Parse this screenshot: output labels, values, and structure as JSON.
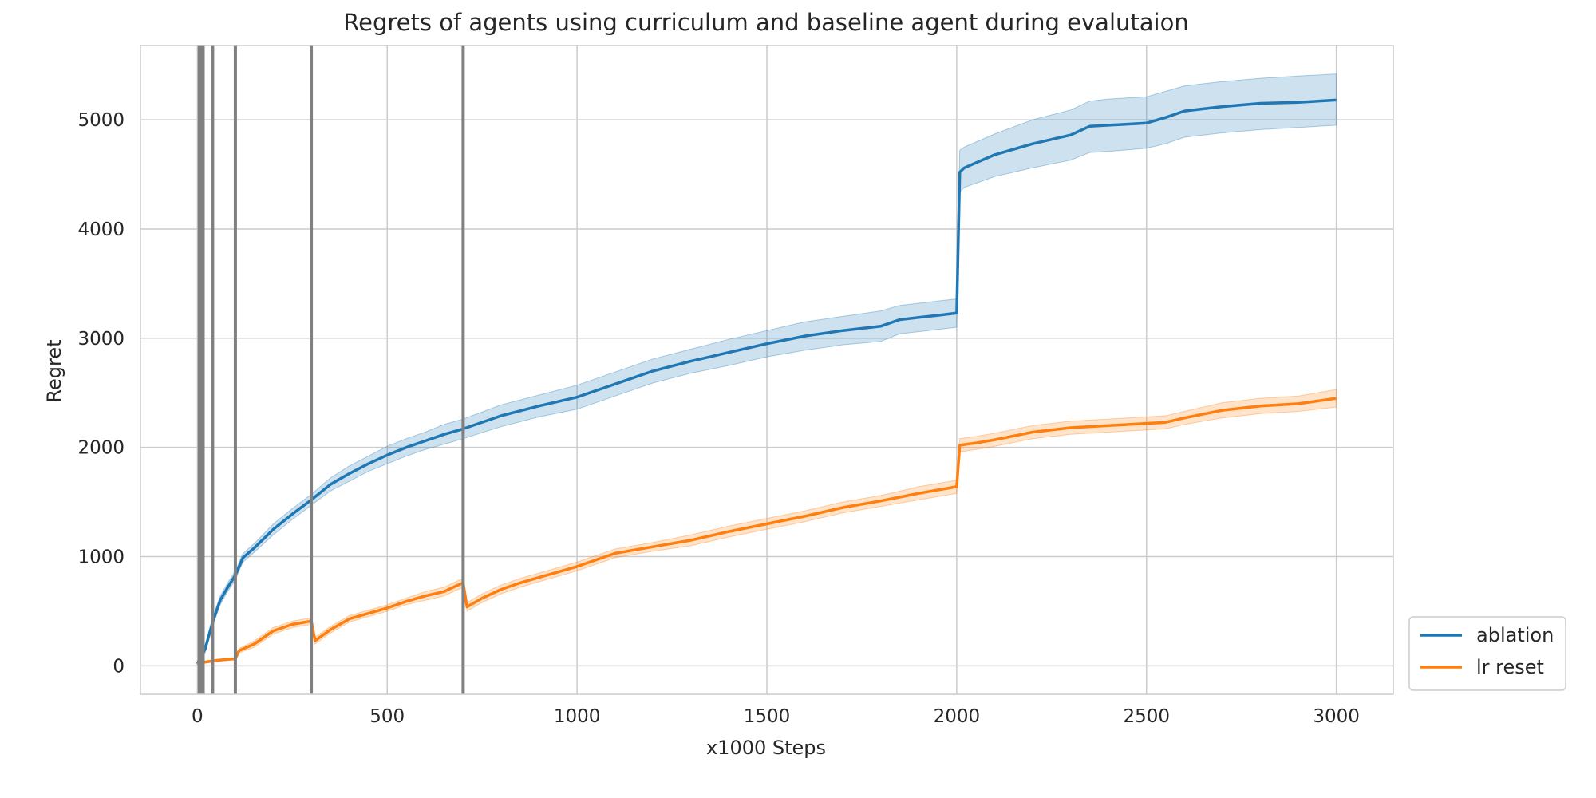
{
  "chart_data": {
    "type": "line",
    "title": "Regrets of agents using curriculum and baseline agent during evalutaion",
    "xlabel": "x1000 Steps",
    "ylabel": "Regret",
    "xlim": [
      -150,
      3150
    ],
    "ylim": [
      -260,
      5680
    ],
    "xticks": [
      0,
      500,
      1000,
      1500,
      2000,
      2500,
      3000
    ],
    "yticks": [
      0,
      1000,
      2000,
      3000,
      4000,
      5000
    ],
    "grid": true,
    "legend_position": "outside-lower-right",
    "vertical_markers": [
      5,
      10,
      15,
      40,
      100,
      300,
      700
    ],
    "series": [
      {
        "name": "ablation",
        "color": "#1f77b4",
        "band_color": "#1f77b4",
        "x": [
          0,
          20,
          40,
          60,
          80,
          100,
          120,
          150,
          200,
          250,
          300,
          350,
          400,
          450,
          500,
          550,
          600,
          650,
          700,
          800,
          900,
          1000,
          1100,
          1200,
          1300,
          1400,
          1500,
          1600,
          1700,
          1800,
          1850,
          1900,
          1950,
          2000,
          2008,
          2020,
          2100,
          2200,
          2300,
          2350,
          2400,
          2500,
          2550,
          2600,
          2700,
          2800,
          2900,
          3000
        ],
        "y": [
          20,
          150,
          400,
          600,
          720,
          830,
          990,
          1080,
          1250,
          1390,
          1520,
          1660,
          1760,
          1850,
          1930,
          2000,
          2060,
          2120,
          2170,
          2290,
          2380,
          2460,
          2580,
          2700,
          2790,
          2870,
          2950,
          3020,
          3070,
          3110,
          3170,
          3190,
          3210,
          3230,
          4520,
          4560,
          4680,
          4780,
          4860,
          4940,
          4950,
          4970,
          5020,
          5080,
          5120,
          5150,
          5160,
          5180
        ],
        "lower": [
          10,
          120,
          360,
          560,
          680,
          790,
          950,
          1040,
          1200,
          1340,
          1470,
          1600,
          1690,
          1780,
          1850,
          1920,
          1980,
          2030,
          2080,
          2190,
          2280,
          2350,
          2470,
          2590,
          2680,
          2750,
          2830,
          2890,
          2940,
          2970,
          3040,
          3060,
          3080,
          3100,
          4340,
          4380,
          4480,
          4560,
          4630,
          4700,
          4710,
          4740,
          4780,
          4840,
          4880,
          4910,
          4930,
          4950
        ],
        "upper": [
          30,
          180,
          440,
          640,
          760,
          870,
          1030,
          1120,
          1300,
          1440,
          1570,
          1720,
          1830,
          1920,
          2010,
          2080,
          2140,
          2210,
          2260,
          2390,
          2480,
          2570,
          2690,
          2810,
          2900,
          2990,
          3070,
          3150,
          3200,
          3250,
          3300,
          3320,
          3340,
          3360,
          4720,
          4750,
          4870,
          5000,
          5090,
          5170,
          5190,
          5210,
          5260,
          5310,
          5350,
          5380,
          5400,
          5420
        ]
      },
      {
        "name": "lr reset",
        "color": "#ff7f0e",
        "band_color": "#ff7f0e",
        "x": [
          0,
          20,
          50,
          80,
          100,
          110,
          150,
          200,
          250,
          300,
          310,
          350,
          400,
          450,
          500,
          550,
          600,
          650,
          680,
          700,
          710,
          750,
          800,
          850,
          900,
          1000,
          1100,
          1200,
          1300,
          1400,
          1500,
          1600,
          1700,
          1800,
          1900,
          2000,
          2008,
          2050,
          2100,
          2200,
          2300,
          2400,
          2500,
          2550,
          2600,
          2700,
          2800,
          2900,
          3000
        ],
        "y": [
          20,
          35,
          50,
          60,
          65,
          140,
          200,
          320,
          380,
          410,
          230,
          330,
          430,
          480,
          530,
          590,
          640,
          680,
          730,
          760,
          540,
          620,
          700,
          760,
          810,
          910,
          1030,
          1090,
          1150,
          1230,
          1300,
          1370,
          1450,
          1510,
          1580,
          1640,
          2020,
          2040,
          2070,
          2140,
          2180,
          2200,
          2220,
          2230,
          2270,
          2340,
          2380,
          2400,
          2450
        ],
        "lower": [
          10,
          25,
          40,
          50,
          55,
          120,
          170,
          290,
          350,
          380,
          200,
          300,
          400,
          450,
          500,
          560,
          600,
          640,
          690,
          720,
          500,
          580,
          660,
          720,
          770,
          870,
          990,
          1050,
          1100,
          1180,
          1250,
          1320,
          1400,
          1460,
          1520,
          1580,
          1960,
          1980,
          2010,
          2080,
          2120,
          2140,
          2160,
          2170,
          2210,
          2270,
          2310,
          2330,
          2370
        ],
        "upper": [
          30,
          45,
          60,
          70,
          75,
          160,
          230,
          350,
          410,
          440,
          260,
          360,
          460,
          510,
          560,
          620,
          680,
          720,
          770,
          800,
          580,
          660,
          740,
          800,
          850,
          950,
          1070,
          1130,
          1200,
          1280,
          1350,
          1420,
          1500,
          1560,
          1640,
          1700,
          2080,
          2100,
          2130,
          2200,
          2240,
          2260,
          2280,
          2290,
          2330,
          2410,
          2450,
          2470,
          2530
        ]
      }
    ]
  }
}
